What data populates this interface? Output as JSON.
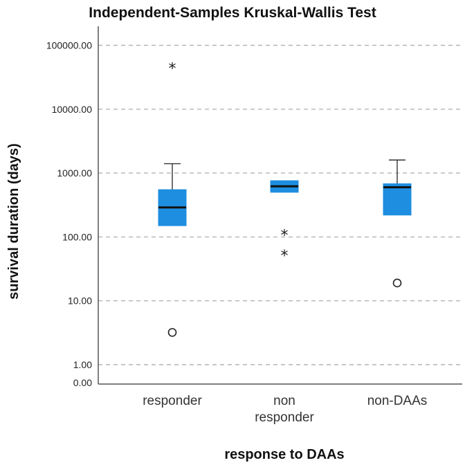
{
  "chart_data": {
    "type": "box",
    "title": "Independent-Samples Kruskal-Wallis Test",
    "xlabel": "response to DAAs",
    "ylabel": "survival duration (days)",
    "y_scale": "log",
    "y_ticks": [
      "100000.00",
      "10000.00",
      "1000.00",
      "100.00",
      "10.00",
      "1.00",
      "0.00"
    ],
    "y_tick_values": [
      100000,
      10000,
      1000,
      100,
      10,
      1,
      0
    ],
    "grid": true,
    "colors": {
      "box": "#1e8ee0",
      "grid": "#b4b4b4",
      "median": "#111111"
    },
    "categories": [
      {
        "label_lines": [
          "responder"
        ],
        "whisker_low": 150,
        "q1": 150,
        "median": 290,
        "q3": 550,
        "whisker_high": 1400,
        "outliers": [
          {
            "value": 3.2,
            "marker": "circle"
          },
          {
            "value": 45000,
            "marker": "star"
          }
        ]
      },
      {
        "label_lines": [
          "non",
          "responder"
        ],
        "whisker_low": 500,
        "q1": 500,
        "median": 620,
        "q3": 760,
        "whisker_high": 760,
        "outliers": [
          {
            "value": 110,
            "marker": "star"
          },
          {
            "value": 53,
            "marker": "star"
          }
        ]
      },
      {
        "label_lines": [
          "non-DAAs"
        ],
        "whisker_low": 220,
        "q1": 220,
        "median": 600,
        "q3": 680,
        "whisker_high": 1600,
        "outliers": [
          {
            "value": 19,
            "marker": "circle"
          }
        ]
      }
    ]
  }
}
